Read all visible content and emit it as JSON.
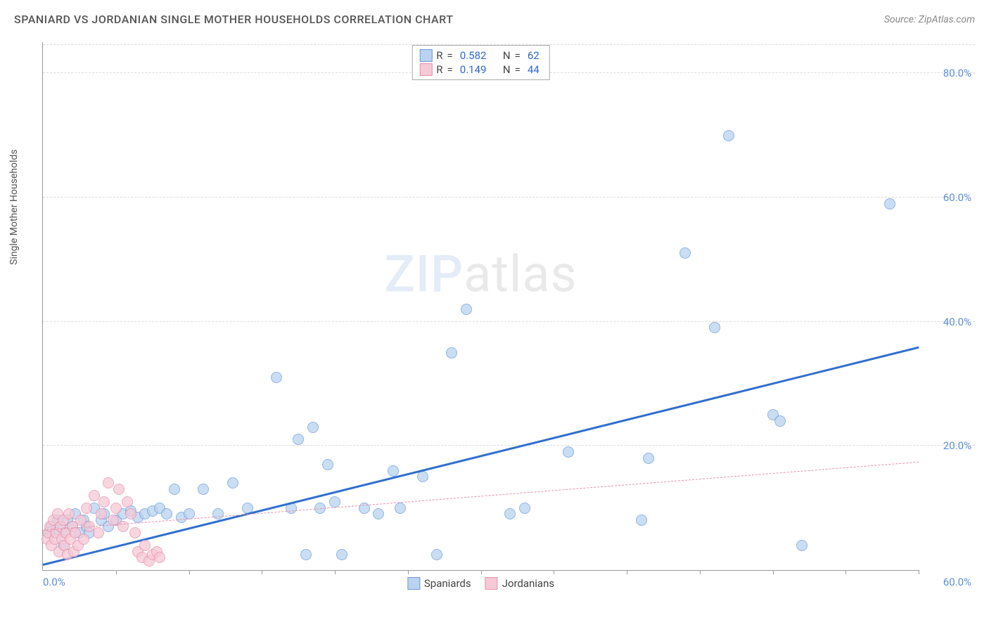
{
  "title": "SPANIARD VS JORDANIAN SINGLE MOTHER HOUSEHOLDS CORRELATION CHART",
  "source": "Source: ZipAtlas.com",
  "y_axis_label": "Single Mother Households",
  "watermark": {
    "zip": "ZIP",
    "atlas": "atlas"
  },
  "chart": {
    "type": "scatter",
    "xlim": [
      0,
      60
    ],
    "ylim": [
      0,
      85
    ],
    "x_tick_step": 5,
    "x_label_min": "0.0%",
    "x_label_max": "60.0%",
    "y_ticks": [
      {
        "v": 20,
        "label": "20.0%"
      },
      {
        "v": 40,
        "label": "40.0%"
      },
      {
        "v": 60,
        "label": "60.0%"
      },
      {
        "v": 80,
        "label": "80.0%"
      }
    ],
    "grid_color": "#dddddd",
    "axis_color": "#999999",
    "tick_label_color": "#5b8fd6",
    "series": [
      {
        "name": "Spaniards",
        "fill": "#b9d3f0",
        "stroke": "#6b9bd8",
        "marker_radius": 8,
        "trend": {
          "x1": 0,
          "y1": 1,
          "x2": 60,
          "y2": 36,
          "color": "#2f6fd0",
          "width": 2.5,
          "style": "solid"
        },
        "R": "0.582",
        "N": "62",
        "points": [
          [
            0.5,
            6
          ],
          [
            0.6,
            7
          ],
          [
            0.8,
            6.5
          ],
          [
            1,
            8
          ],
          [
            1.2,
            7
          ],
          [
            1.4,
            4
          ],
          [
            1.5,
            6
          ],
          [
            1.7,
            8
          ],
          [
            2,
            7
          ],
          [
            2.2,
            9
          ],
          [
            2.5,
            6
          ],
          [
            2.8,
            8
          ],
          [
            3,
            7
          ],
          [
            3.2,
            6
          ],
          [
            3.5,
            10
          ],
          [
            4,
            8
          ],
          [
            4.2,
            9
          ],
          [
            4.5,
            7
          ],
          [
            5,
            8
          ],
          [
            5.5,
            9
          ],
          [
            6,
            9.5
          ],
          [
            6.5,
            8.5
          ],
          [
            7,
            9
          ],
          [
            7.5,
            9.5
          ],
          [
            8,
            10
          ],
          [
            8.5,
            9
          ],
          [
            9,
            13
          ],
          [
            9.5,
            8.5
          ],
          [
            10,
            9
          ],
          [
            11,
            13
          ],
          [
            12,
            9
          ],
          [
            13,
            14
          ],
          [
            14,
            10
          ],
          [
            16,
            31
          ],
          [
            17,
            10
          ],
          [
            17.5,
            21
          ],
          [
            18,
            2.5
          ],
          [
            18.5,
            23
          ],
          [
            19,
            10
          ],
          [
            19.5,
            17
          ],
          [
            20,
            11
          ],
          [
            20.5,
            2.5
          ],
          [
            22,
            10
          ],
          [
            23,
            9
          ],
          [
            24,
            16
          ],
          [
            24.5,
            10
          ],
          [
            26,
            15
          ],
          [
            27,
            2.5
          ],
          [
            28,
            35
          ],
          [
            29,
            42
          ],
          [
            32,
            9
          ],
          [
            33,
            10
          ],
          [
            36,
            19
          ],
          [
            41,
            8
          ],
          [
            41.5,
            18
          ],
          [
            44,
            51
          ],
          [
            46,
            39
          ],
          [
            47,
            70
          ],
          [
            50,
            25
          ],
          [
            50.5,
            24
          ],
          [
            52,
            4
          ],
          [
            58,
            59
          ]
        ]
      },
      {
        "name": "Jordanians",
        "fill": "#f6c9d6",
        "stroke": "#e690ac",
        "marker_radius": 8,
        "trend": {
          "x1": 0,
          "y1": 6.5,
          "x2": 60,
          "y2": 17.5,
          "color": "#e690ac",
          "width": 1.5,
          "style": "dashed"
        },
        "R": "0.149",
        "N": "44",
        "points": [
          [
            0.3,
            5
          ],
          [
            0.4,
            6
          ],
          [
            0.5,
            7
          ],
          [
            0.6,
            4
          ],
          [
            0.7,
            8
          ],
          [
            0.8,
            5
          ],
          [
            0.9,
            6
          ],
          [
            1,
            9
          ],
          [
            1.1,
            3
          ],
          [
            1.2,
            7
          ],
          [
            1.3,
            5
          ],
          [
            1.4,
            8
          ],
          [
            1.5,
            4
          ],
          [
            1.6,
            6
          ],
          [
            1.7,
            2.5
          ],
          [
            1.8,
            9
          ],
          [
            1.9,
            5
          ],
          [
            2,
            7
          ],
          [
            2.1,
            3
          ],
          [
            2.2,
            6
          ],
          [
            2.4,
            4
          ],
          [
            2.6,
            8
          ],
          [
            2.8,
            5
          ],
          [
            3,
            10
          ],
          [
            3.2,
            7
          ],
          [
            3.5,
            12
          ],
          [
            3.8,
            6
          ],
          [
            4,
            9
          ],
          [
            4.2,
            11
          ],
          [
            4.5,
            14
          ],
          [
            4.8,
            8
          ],
          [
            5,
            10
          ],
          [
            5.2,
            13
          ],
          [
            5.5,
            7
          ],
          [
            5.8,
            11
          ],
          [
            6,
            9
          ],
          [
            6.3,
            6
          ],
          [
            6.5,
            3
          ],
          [
            6.8,
            2
          ],
          [
            7,
            4
          ],
          [
            7.3,
            1.5
          ],
          [
            7.5,
            2.5
          ],
          [
            7.8,
            3
          ],
          [
            8,
            2
          ]
        ]
      }
    ],
    "stats_labels": {
      "r": "R",
      "eq": "=",
      "n": "N"
    },
    "legend": [
      {
        "label": "Spaniards",
        "fill": "#b9d3f0",
        "stroke": "#6b9bd8"
      },
      {
        "label": "Jordanians",
        "fill": "#f6c9d6",
        "stroke": "#e690ac"
      }
    ]
  }
}
